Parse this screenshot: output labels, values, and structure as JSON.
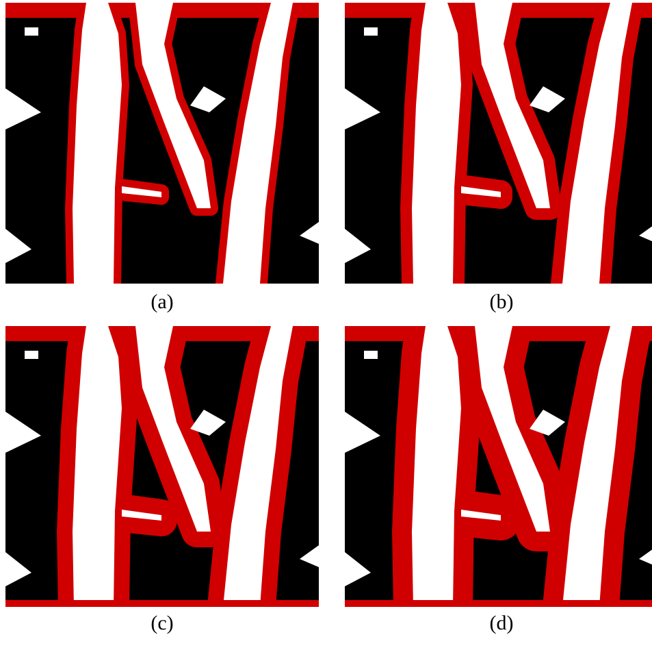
{
  "figure": {
    "panels": [
      {
        "id": "a",
        "caption": "(a)",
        "contour_level": 1
      },
      {
        "id": "b",
        "caption": "(b)",
        "contour_level": 2
      },
      {
        "id": "c",
        "caption": "(c)",
        "contour_level": 3
      },
      {
        "id": "d",
        "caption": "(d)",
        "contour_level": 4
      }
    ],
    "colors": {
      "background": "#ffffff",
      "material": "#000000",
      "void": "#ffffff",
      "contour": "#d00000"
    }
  }
}
